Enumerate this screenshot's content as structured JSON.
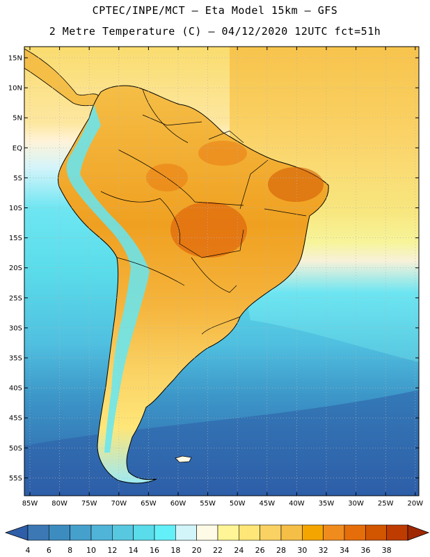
{
  "title": {
    "line1": "CPTEC/INPE/MCT –  Eta Model 15km – GFS",
    "line2": "2 Metre Temperature (C) – 04/12/2020 12UTC fct=51h"
  },
  "map": {
    "lat_labels": [
      "15N",
      "10N",
      "5N",
      "EQ",
      "5S",
      "10S",
      "15S",
      "20S",
      "25S",
      "30S",
      "35S",
      "40S",
      "45S",
      "50S",
      "55S"
    ],
    "lon_labels": [
      "85W",
      "80W",
      "75W",
      "70W",
      "65W",
      "60W",
      "55W",
      "50W",
      "45W",
      "40W",
      "35W",
      "30W",
      "25W",
      "20W"
    ]
  },
  "colorbar": {
    "labels": [
      "4",
      "6",
      "8",
      "10",
      "12",
      "14",
      "16",
      "18",
      "20",
      "22",
      "24",
      "26",
      "28",
      "30",
      "32",
      "34",
      "36",
      "38"
    ],
    "colors": [
      "#3c78b4",
      "#3c8cc0",
      "#46a0cc",
      "#50b4d8",
      "#58c8e0",
      "#5adcea",
      "#64f0f8",
      "#d2f5fa",
      "#fffae6",
      "#fff596",
      "#ffe678",
      "#fad264",
      "#f5be46",
      "#f5a500",
      "#f08c1e",
      "#e66e0a",
      "#d25500",
      "#be3c00"
    ],
    "under_color": "#2e5ea8",
    "over_color": "#a02800"
  }
}
